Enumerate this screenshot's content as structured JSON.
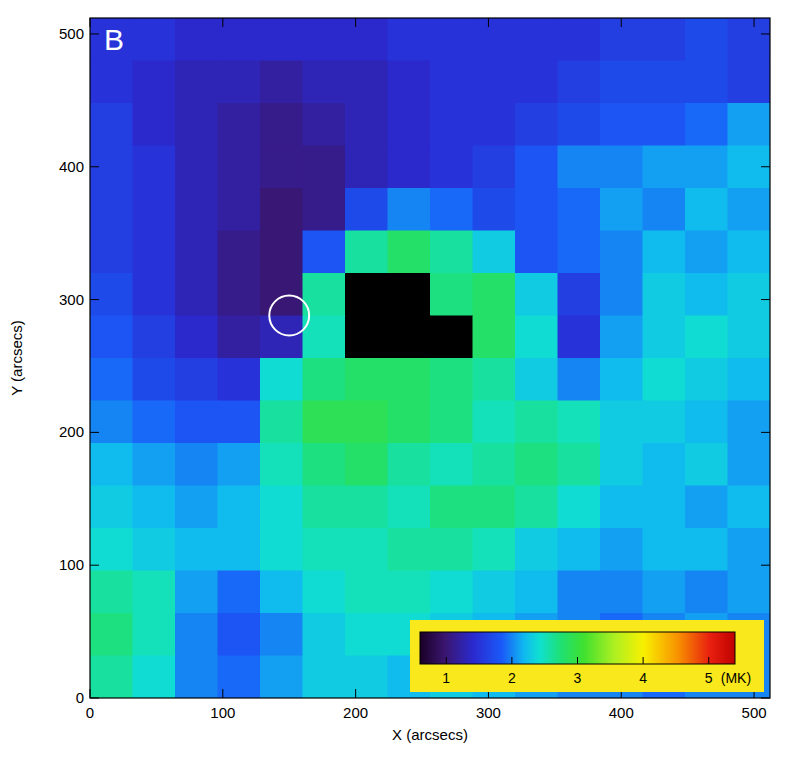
{
  "chart_data": {
    "type": "heatmap",
    "title": "B",
    "xlabel": "X (arcsecs)",
    "ylabel": "Y (arcsecs)",
    "xlim": [
      0,
      512
    ],
    "ylim": [
      0,
      512
    ],
    "xticks": [
      0,
      100,
      200,
      300,
      400,
      500
    ],
    "yticks": [
      0,
      100,
      200,
      300,
      400,
      500
    ],
    "x": [
      16,
      48,
      80,
      112,
      144,
      176,
      208,
      240,
      272,
      304,
      336,
      368,
      400,
      432,
      464,
      496
    ],
    "y": [
      496,
      464,
      432,
      400,
      368,
      336,
      304,
      272,
      240,
      208,
      176,
      144,
      112,
      80,
      48,
      16
    ],
    "values": [
      [
        1.5,
        1.5,
        1.4,
        1.4,
        1.4,
        1.4,
        1.4,
        1.5,
        1.5,
        1.5,
        1.5,
        1.5,
        1.6,
        1.6,
        1.7,
        1.6
      ],
      [
        1.5,
        1.4,
        1.3,
        1.3,
        1.2,
        1.3,
        1.3,
        1.4,
        1.5,
        1.5,
        1.5,
        1.6,
        1.7,
        1.7,
        1.7,
        1.6
      ],
      [
        1.6,
        1.4,
        1.3,
        1.2,
        1.1,
        1.2,
        1.3,
        1.4,
        1.5,
        1.5,
        1.6,
        1.7,
        1.8,
        1.8,
        1.9,
        2.1
      ],
      [
        1.6,
        1.5,
        1.3,
        1.2,
        1.1,
        1.1,
        1.3,
        1.4,
        1.5,
        1.6,
        1.8,
        2.0,
        2.0,
        2.1,
        2.1,
        2.2
      ],
      [
        1.6,
        1.5,
        1.3,
        1.2,
        1.0,
        1.1,
        1.7,
        2.0,
        1.9,
        1.7,
        1.8,
        1.9,
        2.1,
        2.0,
        2.2,
        2.1
      ],
      [
        1.6,
        1.5,
        1.3,
        1.1,
        1.0,
        1.8,
        2.6,
        2.8,
        2.6,
        2.3,
        1.8,
        1.9,
        2.0,
        2.2,
        2.1,
        2.2
      ],
      [
        1.7,
        1.5,
        1.3,
        1.1,
        1.0,
        2.6,
        null,
        null,
        2.7,
        2.8,
        2.3,
        1.6,
        2.0,
        2.3,
        2.2,
        2.3
      ],
      [
        1.8,
        1.6,
        1.4,
        1.2,
        1.3,
        2.5,
        null,
        null,
        null,
        2.8,
        2.4,
        1.5,
        2.1,
        2.3,
        2.4,
        2.3
      ],
      [
        1.9,
        1.7,
        1.6,
        1.5,
        2.4,
        2.7,
        2.8,
        2.8,
        2.7,
        2.6,
        2.3,
        2.0,
        2.2,
        2.4,
        2.3,
        2.2
      ],
      [
        2.0,
        1.9,
        1.8,
        1.8,
        2.6,
        2.9,
        2.9,
        2.8,
        2.7,
        2.5,
        2.6,
        2.5,
        2.3,
        2.3,
        2.2,
        2.1
      ],
      [
        2.2,
        2.1,
        2.0,
        2.1,
        2.5,
        2.7,
        2.8,
        2.6,
        2.5,
        2.6,
        2.7,
        2.6,
        2.3,
        2.2,
        2.3,
        2.1
      ],
      [
        2.3,
        2.2,
        2.1,
        2.2,
        2.4,
        2.6,
        2.6,
        2.5,
        2.7,
        2.7,
        2.6,
        2.4,
        2.2,
        2.2,
        2.1,
        2.2
      ],
      [
        2.4,
        2.3,
        2.2,
        2.2,
        2.4,
        2.5,
        2.5,
        2.6,
        2.6,
        2.5,
        2.3,
        2.2,
        2.1,
        2.2,
        2.2,
        2.1
      ],
      [
        2.6,
        2.5,
        2.1,
        1.9,
        2.2,
        2.4,
        2.5,
        2.5,
        2.4,
        2.3,
        2.2,
        2.0,
        2.0,
        2.1,
        2.0,
        2.1
      ],
      [
        2.7,
        2.5,
        2.0,
        1.8,
        2.0,
        2.3,
        2.4,
        2.4,
        2.3,
        2.2,
        2.1,
        2.0,
        1.9,
        2.0,
        2.1,
        2.0
      ],
      [
        2.6,
        2.4,
        2.0,
        1.9,
        2.1,
        2.3,
        2.3,
        2.2,
        2.3,
        2.2,
        2.1,
        2.0,
        2.0,
        1.9,
        2.0,
        2.0
      ]
    ],
    "colorbar": {
      "range": [
        0.6,
        5.4
      ],
      "ticks": [
        1,
        2,
        3,
        4,
        5
      ],
      "label": "(MK)"
    }
  }
}
